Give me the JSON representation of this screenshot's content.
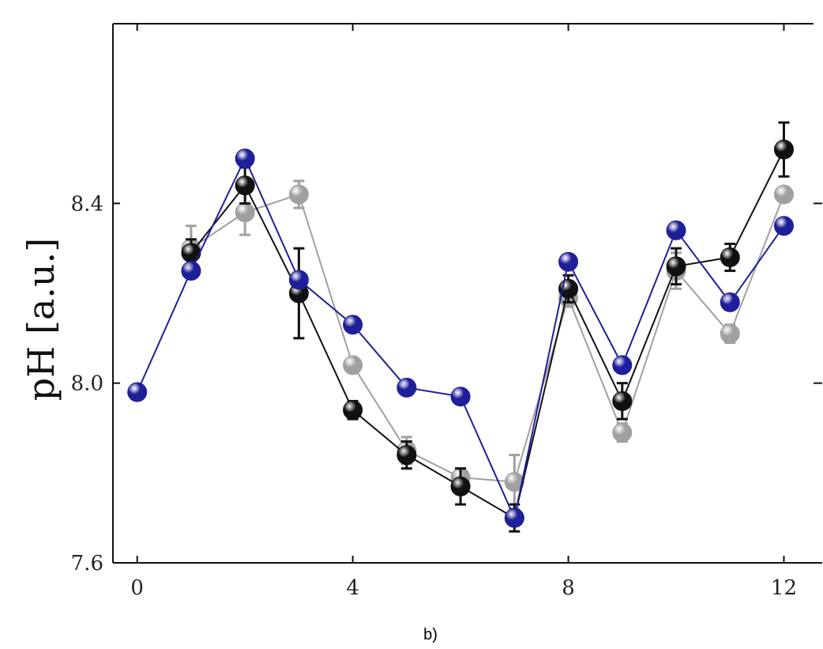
{
  "chart_data": {
    "type": "line",
    "title": "",
    "xlabel": "",
    "ylabel": "pH [a.u.]",
    "caption": "b)",
    "xlim": [
      -0.45,
      12.55
    ],
    "ylim": [
      7.6,
      8.8
    ],
    "xticks": [
      0,
      4,
      8,
      12
    ],
    "xtick_labels": [
      "0",
      "4",
      "8",
      "12"
    ],
    "yticks": [
      7.6,
      8.0,
      8.4
    ],
    "ytick_labels": [
      "7.6",
      "8.0",
      "8.4"
    ],
    "grid": false,
    "legend": "none",
    "series": [
      {
        "color": "#a0a0a0",
        "x": [
          1,
          2,
          3,
          4,
          5,
          6,
          7,
          8,
          9,
          10,
          11,
          12
        ],
        "y": [
          8.3,
          8.38,
          8.42,
          8.04,
          7.85,
          7.79,
          7.78,
          8.19,
          7.89,
          8.25,
          8.11,
          8.42
        ],
        "err": [
          0.05,
          0.05,
          0.03,
          0,
          0.03,
          0.02,
          0.06,
          0.02,
          0.02,
          0.04,
          0.02,
          0
        ]
      },
      {
        "color": "#111111",
        "x": [
          1,
          2,
          3,
          4,
          5,
          6,
          7,
          8,
          9,
          10,
          11,
          12
        ],
        "y": [
          8.29,
          8.44,
          8.2,
          7.94,
          7.84,
          7.77,
          7.7,
          8.21,
          7.96,
          8.26,
          8.28,
          8.52
        ],
        "err": [
          0.03,
          0.04,
          0.1,
          0.02,
          0.03,
          0.04,
          0.03,
          0.03,
          0.04,
          0.04,
          0.03,
          0.06
        ]
      },
      {
        "color": "#1f1f9a",
        "x": [
          0,
          1,
          2,
          3,
          4,
          5,
          6,
          7,
          8,
          9,
          10,
          11,
          12
        ],
        "y": [
          7.98,
          8.25,
          8.5,
          8.23,
          8.13,
          7.99,
          7.97,
          7.7,
          8.27,
          8.04,
          8.34,
          8.18,
          8.35
        ],
        "err": [
          0,
          0,
          0,
          0,
          0,
          0,
          0,
          0,
          0,
          0,
          0,
          0,
          0
        ]
      }
    ]
  }
}
